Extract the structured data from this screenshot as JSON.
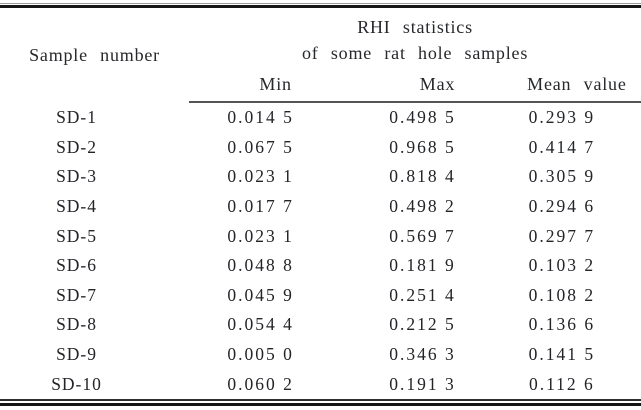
{
  "colors": {
    "background": "#ffffff",
    "ink": "#222222",
    "rule": "#161616"
  },
  "table": {
    "col1_header": "Sample number",
    "span_header_line1": "RHI statistics",
    "span_header_line2": "of some rat hole samples",
    "sub_headers": [
      "Min",
      "Max",
      "Mean value"
    ],
    "rows": [
      {
        "sample": "SD-1",
        "min": "0.014 5",
        "max": "0.498 5",
        "mean": "0.293 9"
      },
      {
        "sample": "SD-2",
        "min": "0.067 5",
        "max": "0.968 5",
        "mean": "0.414 7"
      },
      {
        "sample": "SD-3",
        "min": "0.023 1",
        "max": "0.818 4",
        "mean": "0.305 9"
      },
      {
        "sample": "SD-4",
        "min": "0.017 7",
        "max": "0.498 2",
        "mean": "0.294 6"
      },
      {
        "sample": "SD-5",
        "min": "0.023 1",
        "max": "0.569 7",
        "mean": "0.297 7"
      },
      {
        "sample": "SD-6",
        "min": "0.048 8",
        "max": "0.181 9",
        "mean": "0.103 2"
      },
      {
        "sample": "SD-7",
        "min": "0.045 9",
        "max": "0.251 4",
        "mean": "0.108 2"
      },
      {
        "sample": "SD-8",
        "min": "0.054 4",
        "max": "0.212 5",
        "mean": "0.136 6"
      },
      {
        "sample": "SD-9",
        "min": "0.005 0",
        "max": "0.346 3",
        "mean": "0.141 5"
      },
      {
        "sample": "SD-10",
        "min": "0.060 2",
        "max": "0.191 3",
        "mean": "0.112 6"
      }
    ]
  }
}
